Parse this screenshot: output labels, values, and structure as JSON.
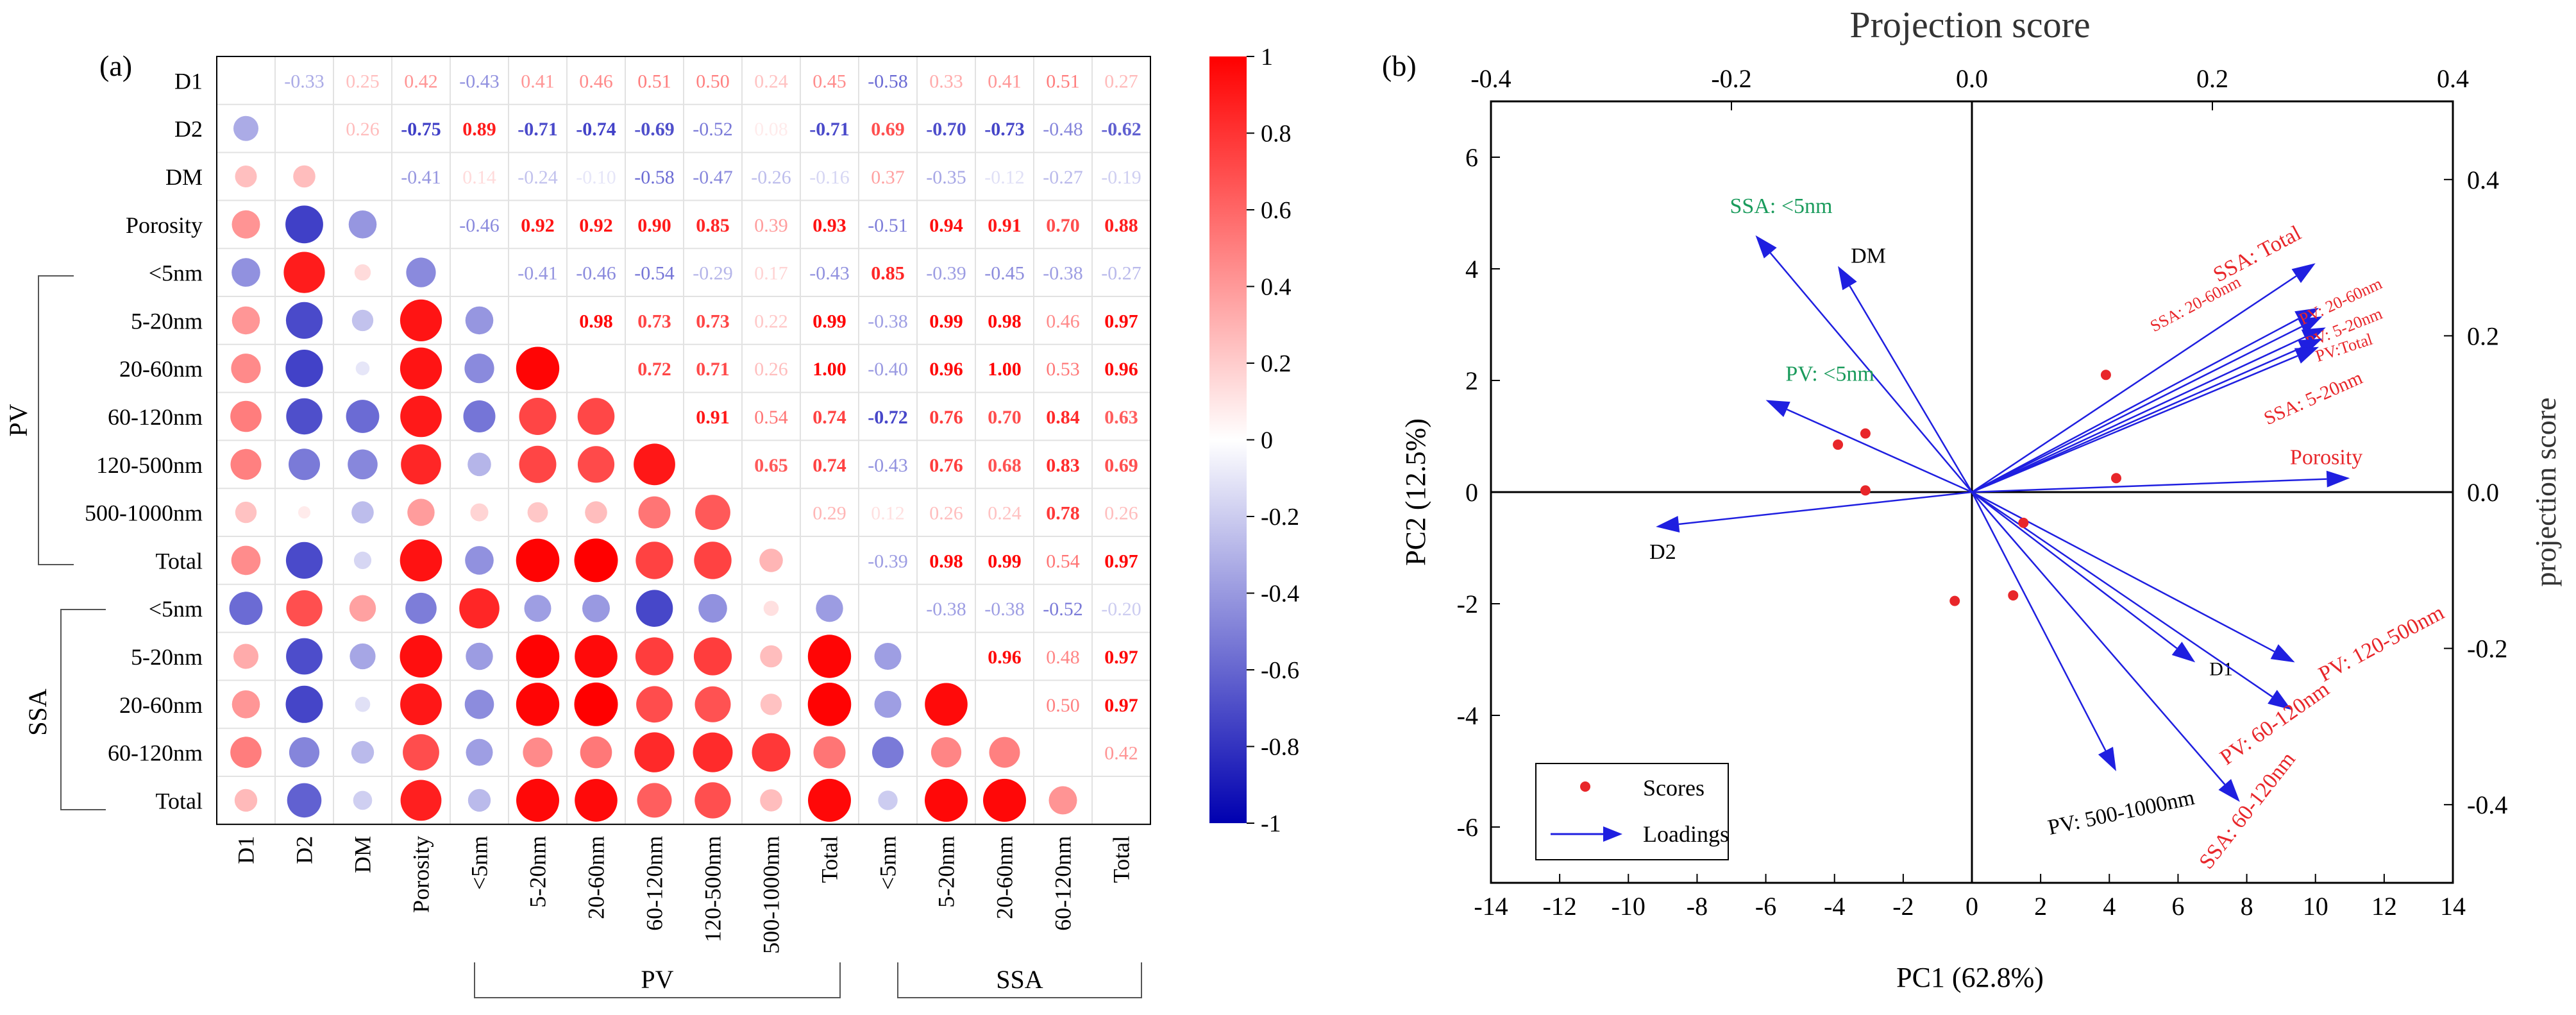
{
  "chart_data": [
    {
      "panel": "(a)",
      "type": "heatmap",
      "variables": [
        "D1",
        "D2",
        "DM",
        "Porosity",
        "<5nm",
        "5-20nm",
        "20-60nm",
        "60-120nm",
        "120-500nm",
        "500-1000nm",
        "Total",
        "<5nm",
        "5-20nm",
        "20-60nm",
        "60-120nm",
        "Total"
      ],
      "group_labels": {
        "PV": "PV",
        "SSA": "SSA"
      },
      "colorbar": {
        "ticks": [
          "1",
          "0.8",
          "0.6",
          "0.4",
          "0.2",
          "0",
          "-0.2",
          "-0.4",
          "-0.6",
          "-0.8",
          "-1"
        ],
        "range": [
          -1,
          1
        ]
      },
      "upper_text": [
        [
          "",
          "-0.33",
          "0.25",
          "0.42",
          "-0.43",
          "0.41",
          "0.46",
          "0.51",
          "0.50",
          "0.24",
          "0.45",
          "-0.58",
          "0.33",
          "0.41",
          "0.51",
          "0.27"
        ],
        [
          "",
          "",
          "0.26",
          "-0.75",
          "0.89",
          "-0.71",
          "-0.74",
          "-0.69",
          "-0.52",
          "0.08",
          "-0.71",
          "0.69",
          "-0.70",
          "-0.73",
          "-0.48",
          "-0.62"
        ],
        [
          "",
          "",
          "",
          "-0.41",
          "0.14",
          "-0.24",
          "-0.10",
          "-0.58",
          "-0.47",
          "-0.26",
          "-0.16",
          "0.37",
          "-0.35",
          "-0.12",
          "-0.27",
          "-0.19"
        ],
        [
          "",
          "",
          "",
          "",
          "-0.46",
          "0.92",
          "0.92",
          "0.90",
          "0.85",
          "0.39",
          "0.93",
          "-0.51",
          "0.94",
          "0.91",
          "0.70",
          "0.88"
        ],
        [
          "",
          "",
          "",
          "",
          "",
          "-0.41",
          "-0.46",
          "-0.54",
          "-0.29",
          "0.17",
          "-0.43",
          "0.85",
          "-0.39",
          "-0.45",
          "-0.38",
          "-0.27"
        ],
        [
          "",
          "",
          "",
          "",
          "",
          "",
          "0.98",
          "0.73",
          "0.73",
          "0.22",
          "0.99",
          "-0.38",
          "0.99",
          "0.98",
          "0.46",
          "0.97"
        ],
        [
          "",
          "",
          "",
          "",
          "",
          "",
          "",
          "0.72",
          "0.71",
          "0.26",
          "1.00",
          "-0.40",
          "0.96",
          "1.00",
          "0.53",
          "0.96"
        ],
        [
          "",
          "",
          "",
          "",
          "",
          "",
          "",
          "",
          "0.91",
          "0.54",
          "0.74",
          "-0.72",
          "0.76",
          "0.70",
          "0.84",
          "0.63"
        ],
        [
          "",
          "",
          "",
          "",
          "",
          "",
          "",
          "",
          "",
          "0.65",
          "0.74",
          "-0.43",
          "0.76",
          "0.68",
          "0.83",
          "0.69"
        ],
        [
          "",
          "",
          "",
          "",
          "",
          "",
          "",
          "",
          "",
          "",
          "0.29",
          "0.12",
          "0.26",
          "0.24",
          "0.78",
          "0.26"
        ],
        [
          "",
          "",
          "",
          "",
          "",
          "",
          "",
          "",
          "",
          "",
          "",
          "-0.39",
          "0.98",
          "0.99",
          "0.54",
          "0.97"
        ],
        [
          "",
          "",
          "",
          "",
          "",
          "",
          "",
          "",
          "",
          "",
          "",
          "",
          "-0.38",
          "-0.38",
          "-0.52",
          "-0.20"
        ],
        [
          "",
          "",
          "",
          "",
          "",
          "",
          "",
          "",
          "",
          "",
          "",
          "",
          "",
          "0.96",
          "0.48",
          "0.97"
        ],
        [
          "",
          "",
          "",
          "",
          "",
          "",
          "",
          "",
          "",
          "",
          "",
          "",
          "",
          "",
          "0.50",
          "0.97"
        ],
        [
          "",
          "",
          "",
          "",
          "",
          "",
          "",
          "",
          "",
          "",
          "",
          "",
          "",
          "",
          "",
          "0.42"
        ],
        [
          "",
          "",
          "",
          "",
          "",
          "",
          "",
          "",
          "",
          "",
          "",
          "",
          "",
          "",
          "",
          ""
        ]
      ]
    },
    {
      "panel": "(b)",
      "type": "scatter",
      "title": "Projection score",
      "xlabel": "PC1 (62.8%)",
      "ylabel": "PC2 (12.5%)",
      "y2label": "projection score",
      "xlim": [
        -14,
        14
      ],
      "ylim": [
        -7,
        7
      ],
      "x2lim": [
        -0.4,
        0.4
      ],
      "y2lim": [
        -0.5,
        0.5
      ],
      "xticks": [
        "-14",
        "-12",
        "-10",
        "-8",
        "-6",
        "-4",
        "-2",
        "0",
        "2",
        "4",
        "6",
        "8",
        "10",
        "12",
        "14"
      ],
      "yticks": [
        "6",
        "4",
        "2",
        "0",
        "-2",
        "-4",
        "-6"
      ],
      "x2ticks": [
        "-0.4",
        "-0.2",
        "0.0",
        "0.2",
        "0.4"
      ],
      "y2ticks": [
        "0.4",
        "0.2",
        "0.0",
        "-0.2",
        "-0.4"
      ],
      "legend": {
        "scores": "Scores",
        "loadings": "Loadings"
      },
      "scores": [
        {
          "x": -3.1,
          "y": 1.05
        },
        {
          "x": -3.9,
          "y": 0.85
        },
        {
          "x": -3.1,
          "y": 0.03
        },
        {
          "x": -0.5,
          "y": -1.95
        },
        {
          "x": 1.2,
          "y": -1.85
        },
        {
          "x": 1.5,
          "y": -0.55
        },
        {
          "x": 3.9,
          "y": 2.1
        },
        {
          "x": 4.2,
          "y": 0.25
        }
      ],
      "loadings": [
        {
          "label": "SSA: <5nm",
          "x": -6.3,
          "y": 4.6,
          "color": "#1a9b5c"
        },
        {
          "label": "DM",
          "x": -3.9,
          "y": 4.05,
          "color": "#000000"
        },
        {
          "label": "PV: <5nm",
          "x": -6.0,
          "y": 1.65,
          "color": "#1a9b5c"
        },
        {
          "label": "D2",
          "x": -9.2,
          "y": -0.62,
          "color": "#000000"
        },
        {
          "label": "SSA: Total",
          "x": 10.0,
          "y": 4.1,
          "color": "#e8262a"
        },
        {
          "label": "SSA: 20-60nm",
          "x": 10.1,
          "y": 3.3,
          "color": "#e8262a"
        },
        {
          "label": "PV: 20-60nm",
          "x": 10.2,
          "y": 3.15,
          "color": "#e8262a"
        },
        {
          "label": "PV: 5-20nm",
          "x": 10.3,
          "y": 2.95,
          "color": "#e8262a"
        },
        {
          "label": "PV:Total",
          "x": 10.2,
          "y": 2.75,
          "color": "#e8262a"
        },
        {
          "label": "SSA: 5-20nm",
          "x": 10.1,
          "y": 2.6,
          "color": "#e8262a"
        },
        {
          "label": "Porosity",
          "x": 11.0,
          "y": 0.25,
          "color": "#e8262a"
        },
        {
          "label": "D1",
          "x": 6.5,
          "y": -3.05,
          "color": "#000000"
        },
        {
          "label": "PV: 120-500nm",
          "x": 9.4,
          "y": -3.05,
          "color": "#e8262a"
        },
        {
          "label": "PV: 60-120nm",
          "x": 9.3,
          "y": -3.9,
          "color": "#e8262a"
        },
        {
          "label": "SSA: 60-120nm",
          "x": 7.8,
          "y": -5.55,
          "color": "#e8262a"
        },
        {
          "label": "PV: 500-1000nm",
          "x": 4.2,
          "y": -5.0,
          "color": "#000000"
        }
      ]
    }
  ]
}
